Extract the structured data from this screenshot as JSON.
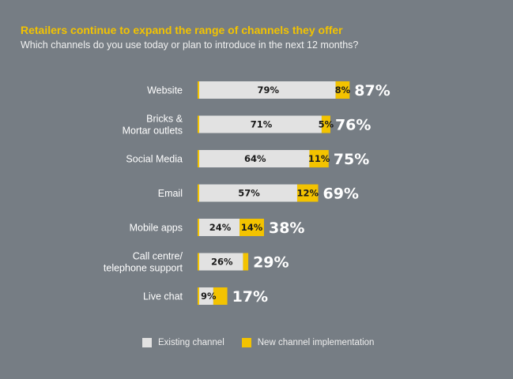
{
  "header": {
    "title": "Retailers continue to expand the range of channels they offer",
    "subtitle": "Which channels do you use today or plan to introduce in the next 12 months?"
  },
  "colors": {
    "background": "#767d84",
    "existing": "#e2e2e2",
    "new": "#f3c300",
    "title": "#f3c300"
  },
  "chart_data": {
    "type": "bar",
    "orientation": "horizontal",
    "stacked": true,
    "categories": [
      [
        "Website"
      ],
      [
        "Bricks &",
        "Mortar outlets"
      ],
      [
        "Social Media"
      ],
      [
        "Email"
      ],
      [
        "Mobile apps"
      ],
      [
        "Call centre/",
        "telephone support"
      ],
      [
        "Live chat"
      ]
    ],
    "series": [
      {
        "name": "Existing channel",
        "values": [
          79,
          71,
          64,
          57,
          24,
          26,
          9
        ],
        "labels": [
          "79%",
          "71%",
          "64%",
          "57%",
          "24%",
          "26%",
          "9%"
        ]
      },
      {
        "name": "New channel implementation",
        "values": [
          8,
          5,
          11,
          12,
          14,
          3,
          8
        ],
        "labels": [
          "8%",
          "5%",
          "11%",
          "12%",
          "14%",
          "",
          ""
        ]
      }
    ],
    "totals": [
      87,
      76,
      75,
      69,
      38,
      29,
      17
    ],
    "total_labels": [
      "87%",
      "76%",
      "75%",
      "69%",
      "38%",
      "29%",
      "17%"
    ],
    "xlim": [
      0,
      100
    ],
    "grid": false,
    "legend": "bottom"
  }
}
